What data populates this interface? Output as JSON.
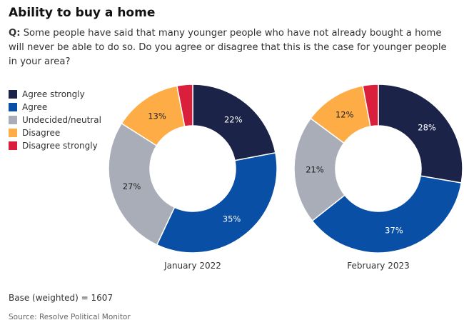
{
  "title": "Ability to buy a home",
  "question": {
    "prefix": "Q:",
    "text": "Some people have said that many younger people who have not already bought a home will never be able to do so. Do you agree or disagree that this is the case for younger people in your area?"
  },
  "legend": [
    {
      "label": "Agree strongly",
      "color": "#1b2448"
    },
    {
      "label": "Agree",
      "color": "#0a4fa6"
    },
    {
      "label": "Undecided/neutral",
      "color": "#a9adb7"
    },
    {
      "label": "Disagree",
      "color": "#fdac46"
    },
    {
      "label": "Disagree strongly",
      "color": "#da1f3c"
    }
  ],
  "chart_data": [
    {
      "type": "pie",
      "donut": true,
      "title": "January 2022",
      "categories": [
        "Agree strongly",
        "Agree",
        "Undecided/neutral",
        "Disagree",
        "Disagree strongly"
      ],
      "values": [
        22,
        35,
        27,
        13,
        3
      ],
      "data_labels": [
        "22%",
        "35%",
        "27%",
        "13%",
        ""
      ]
    },
    {
      "type": "pie",
      "donut": true,
      "title": "February 2023",
      "categories": [
        "Agree strongly",
        "Agree",
        "Undecided/neutral",
        "Disagree",
        "Disagree strongly"
      ],
      "values": [
        28,
        37,
        21,
        12,
        3
      ],
      "data_labels": [
        "28%",
        "37%",
        "21%",
        "12%",
        ""
      ]
    }
  ],
  "base": "Base (weighted) = 1607",
  "source": "Source: Resolve Political Monitor"
}
